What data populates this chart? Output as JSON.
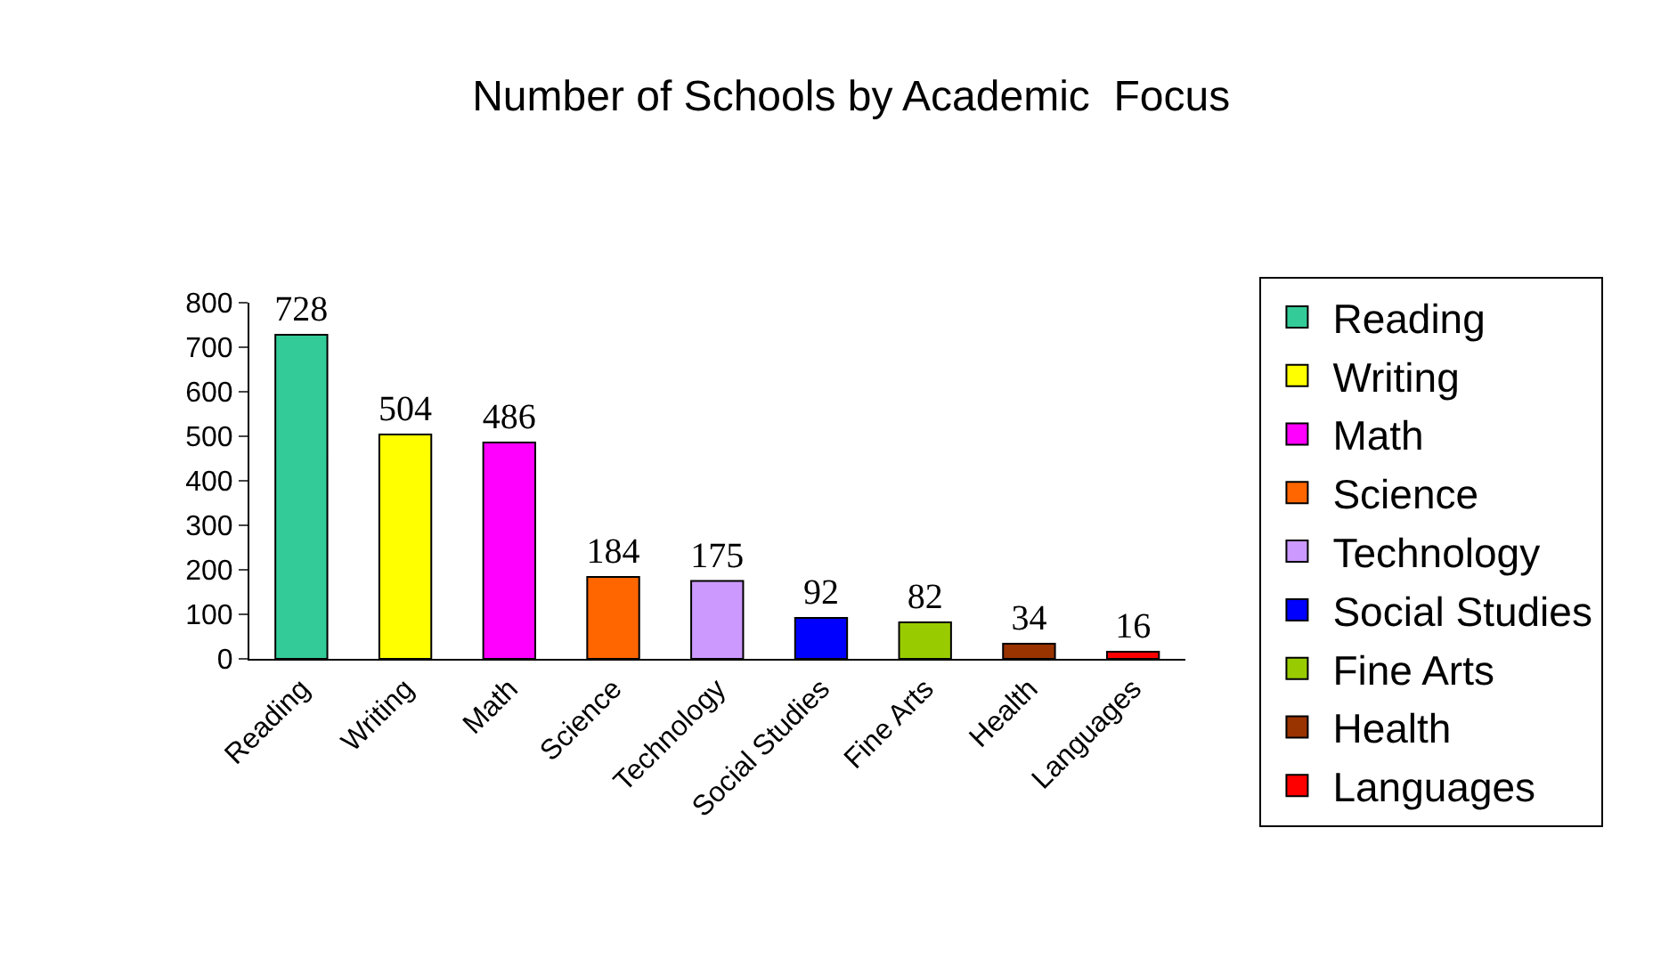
{
  "chart_data": {
    "type": "bar",
    "title": "Number of Schools by Academic  Focus",
    "categories": [
      "Reading",
      "Writing",
      "Math",
      "Science",
      "Technology",
      "Social Studies",
      "Fine Arts",
      "Health",
      "Languages"
    ],
    "series": [
      {
        "name": "Reading",
        "color": "#33cc99",
        "values": [
          728,
          null,
          null,
          null,
          null,
          null,
          null,
          null,
          null
        ]
      },
      {
        "name": "Writing",
        "color": "#ffff00",
        "values": [
          null,
          504,
          null,
          null,
          null,
          null,
          null,
          null,
          null
        ]
      },
      {
        "name": "Math",
        "color": "#ff00ff",
        "values": [
          null,
          null,
          486,
          null,
          null,
          null,
          null,
          null,
          null
        ]
      },
      {
        "name": "Science",
        "color": "#ff6600",
        "values": [
          null,
          null,
          null,
          184,
          null,
          null,
          null,
          null,
          null
        ]
      },
      {
        "name": "Technology",
        "color": "#cc99ff",
        "values": [
          null,
          null,
          null,
          null,
          175,
          null,
          null,
          null,
          null
        ]
      },
      {
        "name": "Social Studies",
        "color": "#0000ff",
        "values": [
          null,
          null,
          null,
          null,
          null,
          92,
          null,
          null,
          null
        ]
      },
      {
        "name": "Fine Arts",
        "color": "#99cc00",
        "values": [
          null,
          null,
          null,
          null,
          null,
          null,
          82,
          null,
          null
        ]
      },
      {
        "name": "Health",
        "color": "#993300",
        "values": [
          null,
          null,
          null,
          null,
          null,
          null,
          null,
          34,
          null
        ]
      },
      {
        "name": "Languages",
        "color": "#ff0000",
        "values": [
          null,
          null,
          null,
          null,
          null,
          null,
          null,
          null,
          16
        ]
      }
    ],
    "ylim": [
      0,
      800
    ],
    "yticks": [
      0,
      100,
      200,
      300,
      400,
      500,
      600,
      700,
      800
    ],
    "grid": false,
    "legend": "right",
    "data_labels": true
  }
}
